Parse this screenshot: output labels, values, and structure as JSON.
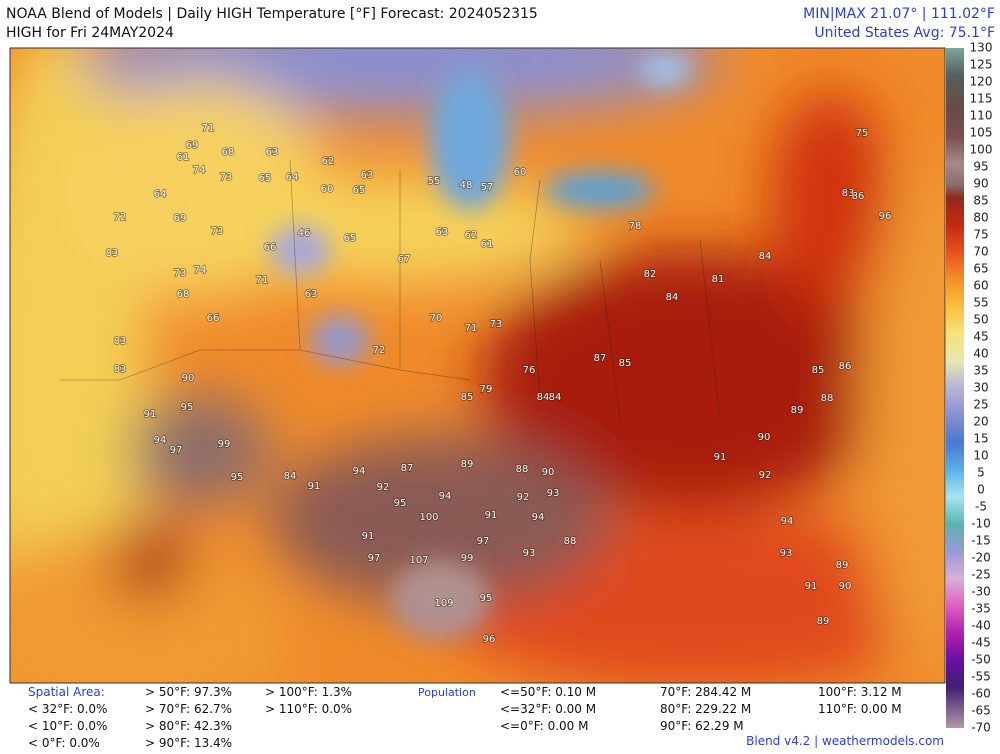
{
  "header": {
    "title": "NOAA Blend of Models | Daily HIGH Temperature [°F] Forecast: 2024052315",
    "subtitle": "HIGH for Fri 24MAY2024",
    "minmax": "MIN|MAX 21.07°  |  111.02°F",
    "average": "United States Avg: 75.1°F"
  },
  "colorbar": {
    "ticks": [
      130,
      125,
      120,
      115,
      110,
      105,
      100,
      95,
      90,
      85,
      80,
      75,
      70,
      65,
      60,
      55,
      50,
      45,
      40,
      35,
      30,
      25,
      20,
      15,
      10,
      5,
      0,
      -5,
      -10,
      -15,
      -20,
      -25,
      -30,
      -35,
      -40,
      -45,
      -50,
      -55,
      -60,
      -65,
      -70
    ]
  },
  "map": {
    "labels": [
      "71",
      "69",
      "68",
      "63",
      "62",
      "61",
      "74",
      "73",
      "65",
      "64",
      "60",
      "65",
      "63",
      "55",
      "48",
      "57",
      "60",
      "64",
      "69",
      "72",
      "73",
      "66",
      "46",
      "65",
      "67",
      "63",
      "62",
      "61",
      "83",
      "73",
      "68",
      "66",
      "71",
      "63",
      "72",
      "70",
      "71",
      "73",
      "76",
      "79",
      "85",
      "84",
      "78",
      "83",
      "83",
      "90",
      "91",
      "95",
      "94",
      "97",
      "99",
      "95",
      "84",
      "91",
      "94",
      "87",
      "89",
      "88",
      "90",
      "92",
      "95",
      "94",
      "100",
      "91",
      "92",
      "94",
      "93",
      "91",
      "97",
      "107",
      "99",
      "97",
      "93",
      "88",
      "109",
      "95",
      "96",
      "84",
      "87",
      "85",
      "84",
      "82",
      "81",
      "84",
      "89",
      "90",
      "91",
      "92",
      "94",
      "93",
      "91",
      "90",
      "89",
      "89",
      "96",
      "86",
      "75",
      "83",
      "85",
      "86",
      "88",
      "74"
    ]
  },
  "footer": {
    "spatial_label": "Spatial Area:",
    "spatial_columns": [
      [
        "< 32°F: 0.0%",
        "< 10°F: 0.0%",
        "< 0°F: 0.0%"
      ],
      [
        "> 50°F: 97.3%",
        "> 70°F: 62.7%",
        "> 80°F: 42.3%",
        "> 90°F: 13.4%"
      ],
      [
        "> 100°F: 1.3%",
        "> 110°F: 0.0%"
      ]
    ],
    "population_label": "Population",
    "population_columns": [
      [
        "<=50°F: 0.10 M",
        "<=32°F: 0.00 M",
        "<=0°F: 0.00 M"
      ],
      [
        "70°F: 284.42 M",
        "80°F: 229.22 M",
        "90°F: 62.29 M"
      ],
      [
        "100°F: 3.12 M",
        "110°F: 0.00 M"
      ]
    ],
    "credit": "Blend v4.2 | weathermodels.com"
  }
}
